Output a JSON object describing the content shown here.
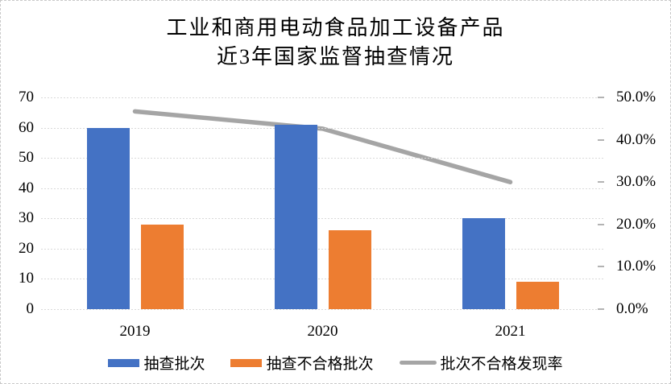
{
  "chart_data": {
    "type": "combo-bar-line",
    "title_line1": "工业和商用电动食品加工设备产品",
    "title_line2": "近3年国家监督抽查情况",
    "categories": [
      "2019",
      "2020",
      "2021"
    ],
    "series": [
      {
        "name": "抽查批次",
        "type": "bar",
        "axis": "left",
        "color": "#4472C4",
        "values": [
          60,
          61,
          30
        ]
      },
      {
        "name": "抽查不合格批次",
        "type": "bar",
        "axis": "left",
        "color": "#ED7D31",
        "values": [
          28,
          26,
          9
        ]
      },
      {
        "name": "批次不合格发现率",
        "type": "line",
        "axis": "right",
        "color": "#A5A5A5",
        "values": [
          46.7,
          42.6,
          30.0
        ],
        "unit": "%"
      }
    ],
    "left_axis": {
      "min": 0,
      "max": 70,
      "step": 10,
      "tick_labels": [
        "70",
        "60",
        "50",
        "40",
        "30",
        "20",
        "10",
        "0"
      ]
    },
    "right_axis": {
      "min": 0,
      "max": 50,
      "step": 10,
      "tick_labels": [
        "50.0%",
        "40.0%",
        "30.0%",
        "20.0%",
        "10.0%",
        "0.0%"
      ]
    },
    "grid": "horizontal-dashed",
    "gridline_color": "#D9D9D9",
    "legend_position": "bottom",
    "background": "#FFFFFF"
  }
}
